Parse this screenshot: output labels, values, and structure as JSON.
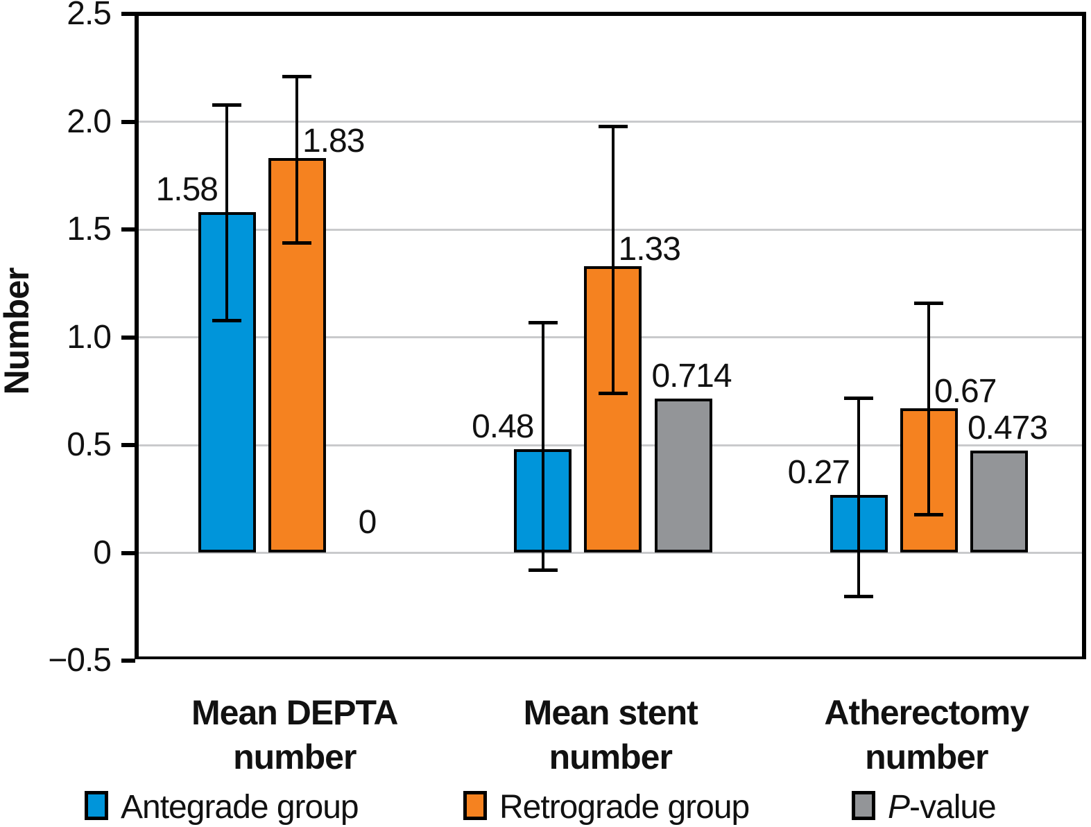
{
  "chart_data": {
    "type": "bar",
    "title": "",
    "ylabel": "Number",
    "ylim": [
      -0.5,
      2.5
    ],
    "ytick_values": [
      2.5,
      2.0,
      1.5,
      1.0,
      0.5,
      0,
      -0.5
    ],
    "ytick_labels": [
      "2.5",
      "2.0",
      "1.5",
      "1.0",
      "0.5",
      "0",
      "−0.5"
    ],
    "gridline_values": [
      2.0,
      1.5,
      1.0,
      0.5,
      0
    ],
    "grid": "horizontal",
    "legend_position": "bottom",
    "categories": [
      {
        "key": "mean-depta-number",
        "label_lines": [
          "Mean DEPTA",
          "number"
        ]
      },
      {
        "key": "mean-stent-number",
        "label_lines": [
          "Mean stent",
          "number"
        ]
      },
      {
        "key": "atherectomy-number",
        "label_lines": [
          "Atherectomy",
          "number"
        ]
      }
    ],
    "series": [
      {
        "key": "antegrade",
        "name": "Antegrade group",
        "color": "#0095da",
        "values": [
          1.58,
          0.48,
          0.27
        ],
        "value_labels": [
          "1.58",
          "0.48",
          "0.27"
        ],
        "err_low": [
          1.08,
          -0.08,
          -0.2
        ],
        "err_high": [
          2.08,
          1.07,
          0.72
        ]
      },
      {
        "key": "retrograde",
        "name": "Retrograde group",
        "color": "#f58220",
        "values": [
          1.83,
          1.33,
          0.67
        ],
        "value_labels": [
          "1.83",
          "1.33",
          "0.67"
        ],
        "err_low": [
          1.44,
          0.74,
          0.18
        ],
        "err_high": [
          2.21,
          1.98,
          1.16
        ]
      },
      {
        "key": "p-value",
        "name": "P-value",
        "italic_first_letter": true,
        "color": "#939598",
        "values": [
          0,
          0.714,
          0.473
        ],
        "value_labels": [
          "0",
          "0.714",
          "0.473"
        ],
        "err_low": null,
        "err_high": null
      }
    ]
  },
  "colors": {
    "axis": "#000000",
    "gridline": "#c9cacc",
    "text": "#111111",
    "background": "#ffffff"
  }
}
